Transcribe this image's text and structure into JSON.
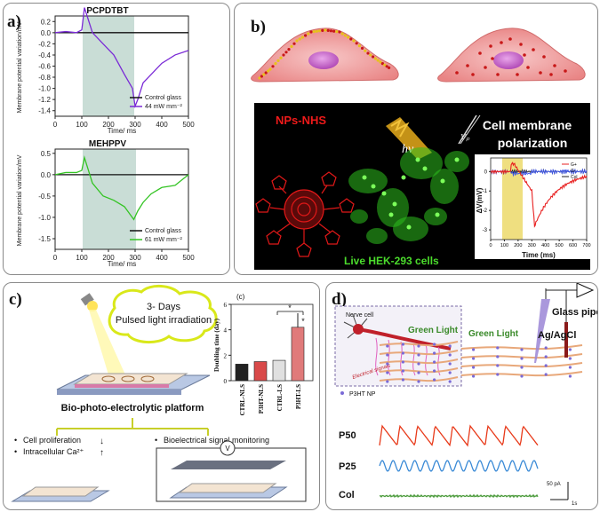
{
  "panel_a": {
    "label": "a)",
    "ylabel": "Membrane potential variation/mV",
    "xlabel": "Time/ ms",
    "top": {
      "title": "PCPDTBT",
      "yticks": [
        "0.2",
        "0.0",
        "-0.2",
        "-0.4",
        "-0.6",
        "-0.8",
        "-1.0",
        "-1.2",
        "-1.4"
      ],
      "xticks": [
        "0",
        "100",
        "200",
        "300",
        "400",
        "500"
      ],
      "legend": [
        "Control glass",
        "44 mW mm⁻²"
      ]
    },
    "bottom": {
      "title": "MEHPPV",
      "yticks": [
        "0.5",
        "0.0",
        "-0.5",
        "-1.0",
        "-1.5"
      ],
      "xticks": [
        "0",
        "100",
        "200",
        "300",
        "400",
        "500"
      ],
      "legend": [
        "Control glass",
        "61 mW mm⁻²"
      ]
    },
    "colors": {
      "control": "#111111",
      "top_light": "#7a2ad6",
      "bottom_light": "#34c424",
      "shade": "#c9ddd6"
    }
  },
  "panel_b": {
    "label": "b)",
    "nps_label": "NPs-NHS",
    "hv_label": "hν",
    "cell_label": "Live HEK-293 cells",
    "polar_line1": "Cell membrane",
    "polar_line2": "polarization",
    "vp_label": "Vₚ",
    "inset": {
      "ylabel": "ΔV(mV)",
      "xlabel": "Time (ms)",
      "yticks": [
        "0",
        "-1",
        "-2",
        "-3"
      ],
      "xticks": [
        "0",
        "100",
        "200",
        "300",
        "400",
        "500",
        "600",
        "700"
      ],
      "legend": [
        "G+",
        "G-",
        "Col"
      ]
    }
  },
  "panel_c": {
    "label": "c)",
    "cloud_line1": "3- Days",
    "cloud_line2": "Pulsed light irradiation",
    "platform_label": "Bio-photo-electrolytic platform",
    "bullet1": "Cell proliferation",
    "bullet2": "Intracellular Ca²⁺",
    "bullet3": "Bioelectrical signal monitoring",
    "volt_label": "V",
    "bar": {
      "tag": "(c)",
      "ylabel": "Doubling time (day)",
      "categories": [
        "CTRL-NLS",
        "P3HT-NLS",
        "CTRL-LS",
        "P3HT-LS"
      ],
      "yticks": [
        "0",
        "2",
        "4",
        "6"
      ],
      "star": "*"
    }
  },
  "panel_d": {
    "label": "d)",
    "nerve": "Nerve cell",
    "green1": "Green Light",
    "green2": "Green Light",
    "pipette": "Glass pipette",
    "agcl": "Ag/AgCl",
    "signals": "Electrical signals",
    "np_legend": "P3HT NP",
    "traces": [
      "P50",
      "P25",
      "Col"
    ],
    "scale_y": "50 pA",
    "scale_x": "1s"
  },
  "chart_data": [
    {
      "type": "line",
      "title": "PCPDTBT",
      "xlabel": "Time/ ms",
      "ylabel": "Membrane potential variation/mV",
      "xlim": [
        0,
        500
      ],
      "ylim": [
        -1.5,
        0.3
      ],
      "series": [
        {
          "name": "Control glass",
          "x": [
            0,
            100,
            200,
            300,
            400,
            500
          ],
          "y": [
            0,
            0,
            0,
            0,
            0,
            0
          ]
        },
        {
          "name": "44 mW mm⁻²",
          "x": [
            0,
            40,
            80,
            100,
            110,
            140,
            180,
            220,
            260,
            290,
            300,
            310,
            330,
            360,
            400,
            450,
            500
          ],
          "y": [
            0,
            0.02,
            0,
            0.05,
            0.45,
            0.0,
            -0.2,
            -0.4,
            -0.75,
            -1.0,
            -1.32,
            -1.2,
            -0.9,
            -0.75,
            -0.55,
            -0.4,
            -0.32
          ]
        }
      ]
    },
    {
      "type": "line",
      "title": "MEHPPV",
      "xlabel": "Time/ ms",
      "ylabel": "Membrane potential variation/mV",
      "xlim": [
        0,
        500
      ],
      "ylim": [
        -1.75,
        0.6
      ],
      "series": [
        {
          "name": "Control glass",
          "x": [
            0,
            100,
            200,
            300,
            400,
            500
          ],
          "y": [
            0,
            0,
            0,
            0,
            0,
            0
          ]
        },
        {
          "name": "61 mW mm⁻²",
          "x": [
            0,
            40,
            80,
            100,
            110,
            140,
            180,
            220,
            260,
            295,
            310,
            330,
            360,
            400,
            450,
            480,
            500
          ],
          "y": [
            0.0,
            0.05,
            0.05,
            0.1,
            0.4,
            -0.2,
            -0.5,
            -0.6,
            -0.75,
            -1.05,
            -0.85,
            -0.65,
            -0.45,
            -0.3,
            -0.25,
            -0.1,
            0.0
          ]
        }
      ]
    },
    {
      "type": "bar",
      "ylabel": "Doubling time (day)",
      "categories": [
        "CTRL-NLS",
        "P3HT-NLS",
        "CTRL-LS",
        "P3HT-LS"
      ],
      "values": [
        1.3,
        1.5,
        1.6,
        4.2
      ],
      "ylim": [
        0,
        6
      ]
    }
  ]
}
